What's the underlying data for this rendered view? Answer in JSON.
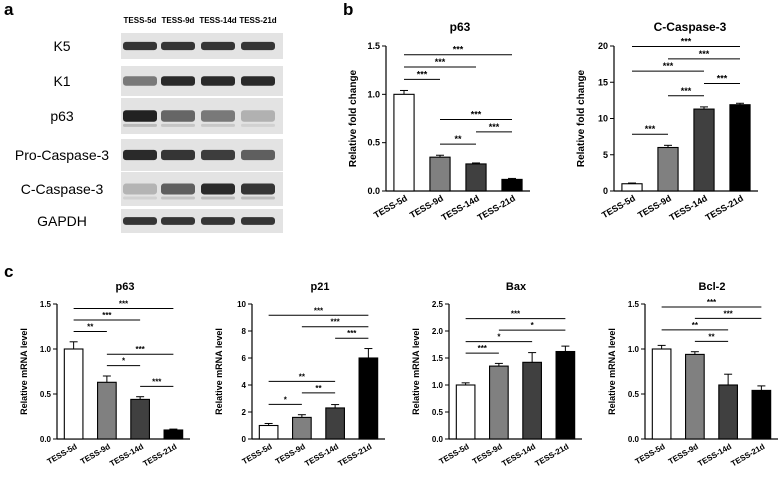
{
  "panel_letters": {
    "a": "a",
    "b": "b",
    "c": "c"
  },
  "blot": {
    "lanes": [
      "TESS-5d",
      "TESS-9d",
      "TESS-14d",
      "TESS-21d"
    ],
    "rows": [
      "K5",
      "K1",
      "p63",
      "Pro-Caspase-3",
      "C-Caspase-3",
      "GAPDH"
    ],
    "band_intensity": [
      [
        0.85,
        0.85,
        0.85,
        0.85
      ],
      [
        0.45,
        0.9,
        0.9,
        0.9
      ],
      [
        0.95,
        0.55,
        0.45,
        0.12
      ],
      [
        0.9,
        0.85,
        0.8,
        0.6
      ],
      [
        0.1,
        0.6,
        0.9,
        0.85
      ],
      [
        0.85,
        0.85,
        0.85,
        0.85
      ]
    ]
  },
  "chart_data": [
    {
      "type": "bar",
      "title": "p63",
      "xlabel": "",
      "ylabel": "Relative fold change",
      "categories": [
        "TESS-5d",
        "TESS-9d",
        "TESS-14d",
        "TESS-21d"
      ],
      "values": [
        1.0,
        0.35,
        0.28,
        0.12
      ],
      "errors": [
        0.04,
        0.02,
        0.01,
        0.01
      ],
      "ylim": [
        0,
        1.5
      ],
      "yticks": [
        "0.0",
        "0.5",
        "1.0",
        "1.5"
      ],
      "bar_colors": [
        "#ffffff",
        "#808080",
        "#404040",
        "#000000"
      ],
      "significance": [
        {
          "from": 0,
          "to": 1,
          "label": "***"
        },
        {
          "from": 0,
          "to": 2,
          "label": "***"
        },
        {
          "from": 0,
          "to": 3,
          "label": "***"
        },
        {
          "from": 1,
          "to": 2,
          "label": "**"
        },
        {
          "from": 1,
          "to": 3,
          "label": "***"
        },
        {
          "from": 2,
          "to": 3,
          "label": "***"
        }
      ]
    },
    {
      "type": "bar",
      "title": "C-Caspase-3",
      "xlabel": "",
      "ylabel": "Relative fold change",
      "categories": [
        "TESS-5d",
        "TESS-9d",
        "TESS-14d",
        "TESS-21d"
      ],
      "values": [
        1.0,
        6.0,
        11.3,
        11.9
      ],
      "errors": [
        0.1,
        0.3,
        0.3,
        0.2
      ],
      "ylim": [
        0,
        20
      ],
      "yticks": [
        "0",
        "5",
        "10",
        "15",
        "20"
      ],
      "bar_colors": [
        "#ffffff",
        "#808080",
        "#404040",
        "#000000"
      ],
      "significance": [
        {
          "from": 0,
          "to": 1,
          "label": "***"
        },
        {
          "from": 1,
          "to": 2,
          "label": "***"
        },
        {
          "from": 2,
          "to": 3,
          "label": "***"
        },
        {
          "from": 0,
          "to": 3,
          "label": "***"
        },
        {
          "from": 0,
          "to": 2,
          "label": "***"
        },
        {
          "from": 1,
          "to": 3,
          "label": "***"
        }
      ]
    },
    {
      "type": "bar",
      "title": "p63",
      "xlabel": "",
      "ylabel": "Relative mRNA level",
      "categories": [
        "TESS-5d",
        "TESS-9d",
        "TESS-14d",
        "TESS-21d"
      ],
      "values": [
        1.0,
        0.63,
        0.44,
        0.1
      ],
      "errors": [
        0.08,
        0.07,
        0.03,
        0.01
      ],
      "ylim": [
        0,
        1.5
      ],
      "yticks": [
        "0.0",
        "0.5",
        "1.0",
        "1.5"
      ],
      "bar_colors": [
        "#ffffff",
        "#808080",
        "#404040",
        "#000000"
      ],
      "significance": [
        {
          "from": 0,
          "to": 1,
          "label": "**"
        },
        {
          "from": 0,
          "to": 2,
          "label": "***"
        },
        {
          "from": 0,
          "to": 3,
          "label": "***"
        },
        {
          "from": 1,
          "to": 2,
          "label": "*"
        },
        {
          "from": 1,
          "to": 3,
          "label": "***"
        },
        {
          "from": 2,
          "to": 3,
          "label": "***"
        }
      ]
    },
    {
      "type": "bar",
      "title": "p21",
      "xlabel": "",
      "ylabel": "Relative mRNA level",
      "categories": [
        "TESS-5d",
        "TESS-9d",
        "TESS-14d",
        "TESS-21d"
      ],
      "values": [
        1.0,
        1.6,
        2.3,
        6.0
      ],
      "errors": [
        0.15,
        0.2,
        0.25,
        0.7
      ],
      "ylim": [
        0,
        10
      ],
      "yticks": [
        "0",
        "2",
        "4",
        "6",
        "8",
        "10"
      ],
      "bar_colors": [
        "#ffffff",
        "#808080",
        "#404040",
        "#000000"
      ],
      "significance": [
        {
          "from": 0,
          "to": 1,
          "label": "*"
        },
        {
          "from": 1,
          "to": 2,
          "label": "**"
        },
        {
          "from": 0,
          "to": 2,
          "label": "**"
        },
        {
          "from": 2,
          "to": 3,
          "label": "***"
        },
        {
          "from": 1,
          "to": 3,
          "label": "***"
        },
        {
          "from": 0,
          "to": 3,
          "label": "***"
        }
      ]
    },
    {
      "type": "bar",
      "title": "Bax",
      "xlabel": "",
      "ylabel": "Relative mRNA level",
      "categories": [
        "TESS-5d",
        "TESS-9d",
        "TESS-14d",
        "TESS-21d"
      ],
      "values": [
        1.0,
        1.35,
        1.42,
        1.62
      ],
      "errors": [
        0.04,
        0.05,
        0.18,
        0.1
      ],
      "ylim": [
        0,
        2.5
      ],
      "yticks": [
        "0.0",
        "0.5",
        "1.0",
        "1.5",
        "2.0",
        "2.5"
      ],
      "bar_colors": [
        "#ffffff",
        "#808080",
        "#404040",
        "#000000"
      ],
      "significance": [
        {
          "from": 0,
          "to": 1,
          "label": "***"
        },
        {
          "from": 0,
          "to": 2,
          "label": "*"
        },
        {
          "from": 1,
          "to": 3,
          "label": "*"
        },
        {
          "from": 0,
          "to": 3,
          "label": "***"
        }
      ]
    },
    {
      "type": "bar",
      "title": "Bcl-2",
      "xlabel": "",
      "ylabel": "Relative mRNA level",
      "categories": [
        "TESS-5d",
        "TESS-9d",
        "TESS-14d",
        "TESS-21d"
      ],
      "values": [
        1.0,
        0.94,
        0.6,
        0.54
      ],
      "errors": [
        0.04,
        0.03,
        0.12,
        0.05
      ],
      "ylim": [
        0,
        1.5
      ],
      "yticks": [
        "0.0",
        "0.5",
        "1.0",
        "1.5"
      ],
      "bar_colors": [
        "#ffffff",
        "#808080",
        "#404040",
        "#000000"
      ],
      "significance": [
        {
          "from": 1,
          "to": 2,
          "label": "**"
        },
        {
          "from": 1,
          "to": 3,
          "label": "***"
        },
        {
          "from": 0,
          "to": 2,
          "label": "**"
        },
        {
          "from": 0,
          "to": 3,
          "label": "***"
        }
      ]
    }
  ]
}
